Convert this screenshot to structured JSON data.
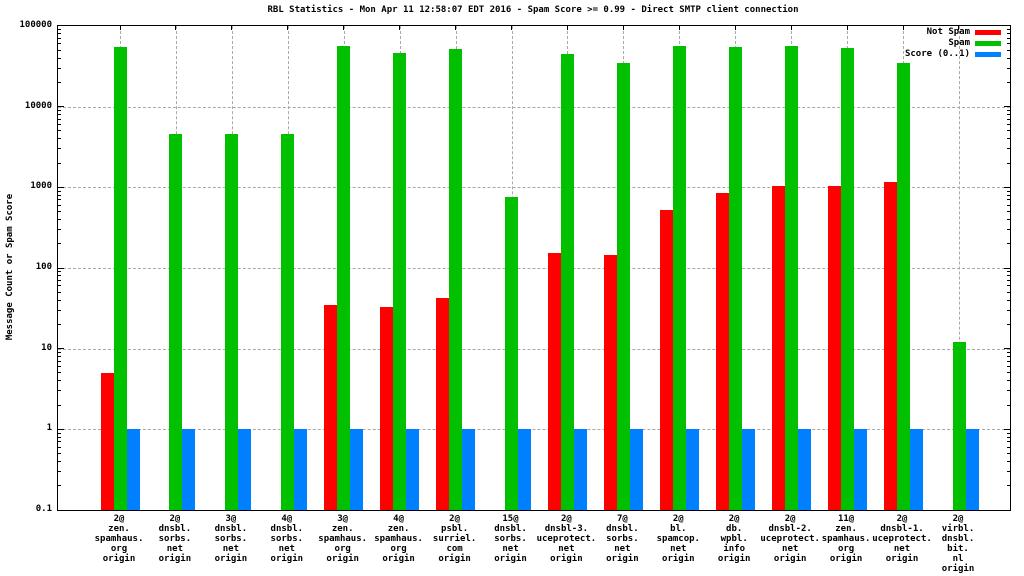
{
  "chart_data": {
    "type": "bar",
    "title": "RBL Statistics - Mon Apr 11 12:58:07 EDT 2016 - Spam Score >= 0.99 - Direct SMTP client connection",
    "ylabel": "Message Count or Spam Score",
    "yscale": "log",
    "ylim": [
      0.1,
      100000
    ],
    "ytick_labels": [
      "100000",
      "10000",
      "1000",
      "100",
      "10",
      "1",
      "0.1"
    ],
    "grid": true,
    "legend_position": "top-right-inside",
    "categories": [
      [
        "2@",
        "zen.",
        "spamhaus.",
        "org",
        "origin"
      ],
      [
        "2@",
        "dnsbl.",
        "sorbs.",
        "net",
        "origin"
      ],
      [
        "3@",
        "dnsbl.",
        "sorbs.",
        "net",
        "origin"
      ],
      [
        "4@",
        "dnsbl.",
        "sorbs.",
        "net",
        "origin"
      ],
      [
        "3@",
        "zen.",
        "spamhaus.",
        "org",
        "origin"
      ],
      [
        "4@",
        "zen.",
        "spamhaus.",
        "org",
        "origin"
      ],
      [
        "2@",
        "psbl.",
        "surriel.",
        "com",
        "origin"
      ],
      [
        "15@",
        "dnsbl.",
        "sorbs.",
        "net",
        "origin"
      ],
      [
        "2@",
        "dnsbl-3.",
        "uceprotect.",
        "net",
        "origin"
      ],
      [
        "7@",
        "dnsbl.",
        "sorbs.",
        "net",
        "origin"
      ],
      [
        "2@",
        "bl.",
        "spamcop.",
        "net",
        "origin"
      ],
      [
        "2@",
        "db.",
        "wpbl.",
        "info",
        "origin"
      ],
      [
        "2@",
        "dnsbl-2.",
        "uceprotect.",
        "net",
        "origin"
      ],
      [
        "11@",
        "zen.",
        "spamhaus.",
        "org",
        "origin"
      ],
      [
        "2@",
        "dnsbl-1.",
        "uceprotect.",
        "net",
        "origin"
      ],
      [
        "2@",
        "virbl.",
        "dnsbl.",
        "bit.",
        "nl",
        "origin"
      ]
    ],
    "series": [
      {
        "name": "Not Spam",
        "color": "#ff0000",
        "values": [
          5,
          null,
          null,
          null,
          35,
          33,
          42,
          null,
          155,
          145,
          520,
          850,
          1050,
          1050,
          1150,
          null
        ]
      },
      {
        "name": "Spam",
        "color": "#00c000",
        "values": [
          55000,
          4600,
          4600,
          4600,
          57000,
          46000,
          52000,
          760,
          45000,
          35000,
          57000,
          55000,
          57000,
          53000,
          35000,
          12
        ]
      },
      {
        "name": "Score (0..1)",
        "color": "#0080ff",
        "values": [
          1,
          1,
          1,
          1,
          1,
          1,
          1,
          1,
          1,
          1,
          1,
          1,
          1,
          1,
          1,
          1
        ]
      }
    ]
  }
}
